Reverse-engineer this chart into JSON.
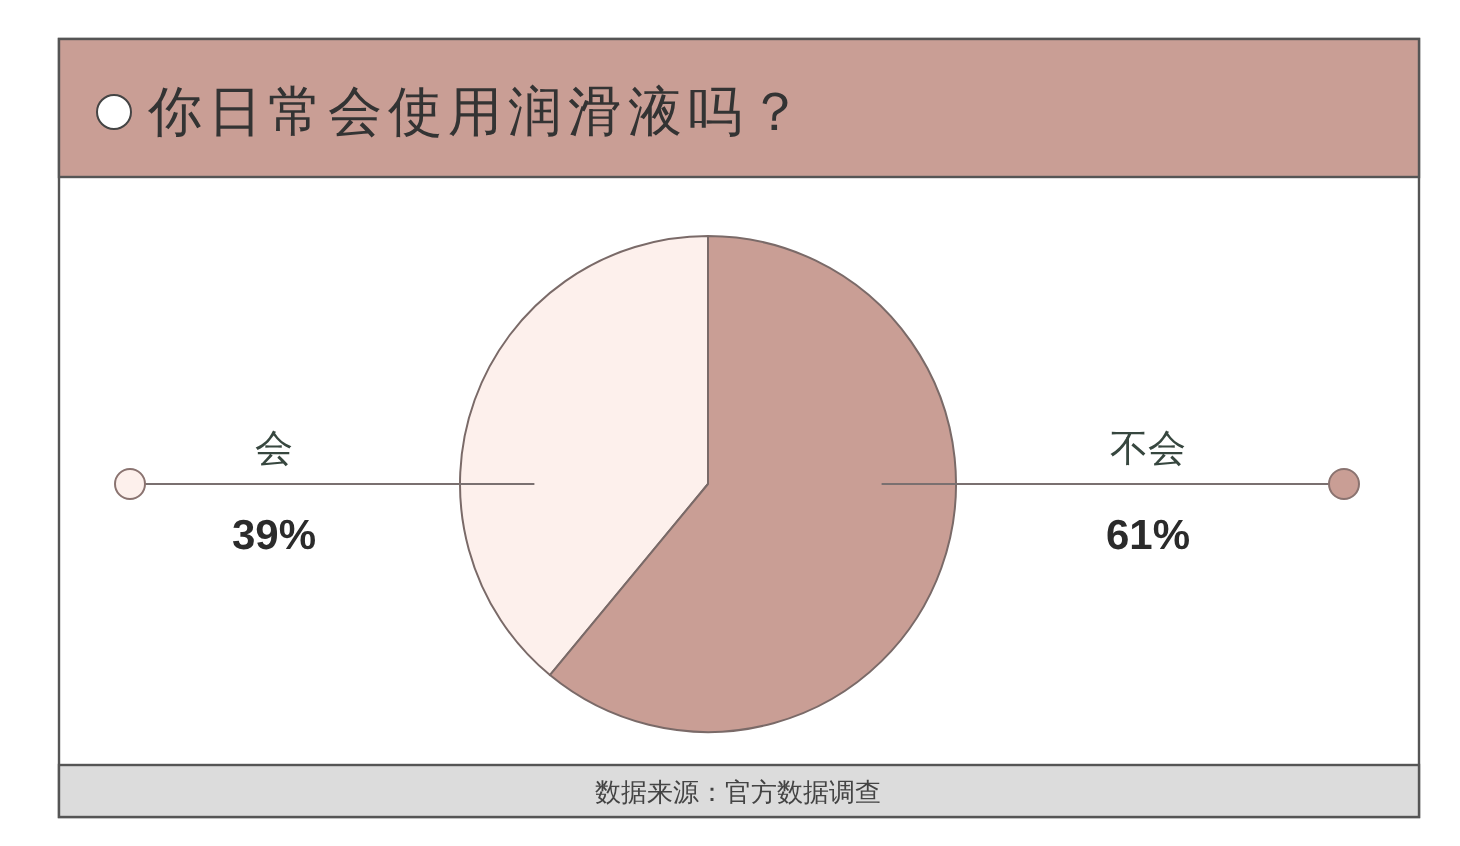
{
  "chart_data": {
    "type": "pie",
    "title": "你日常会使用润滑液吗？",
    "categories": [
      "会",
      "不会"
    ],
    "values": [
      39,
      61
    ],
    "value_labels": [
      "39%",
      "61%"
    ],
    "colors": [
      "#fdf0ec",
      "#c99e95"
    ],
    "annotations": [
      "数据来源：官方数据调查"
    ]
  }
}
